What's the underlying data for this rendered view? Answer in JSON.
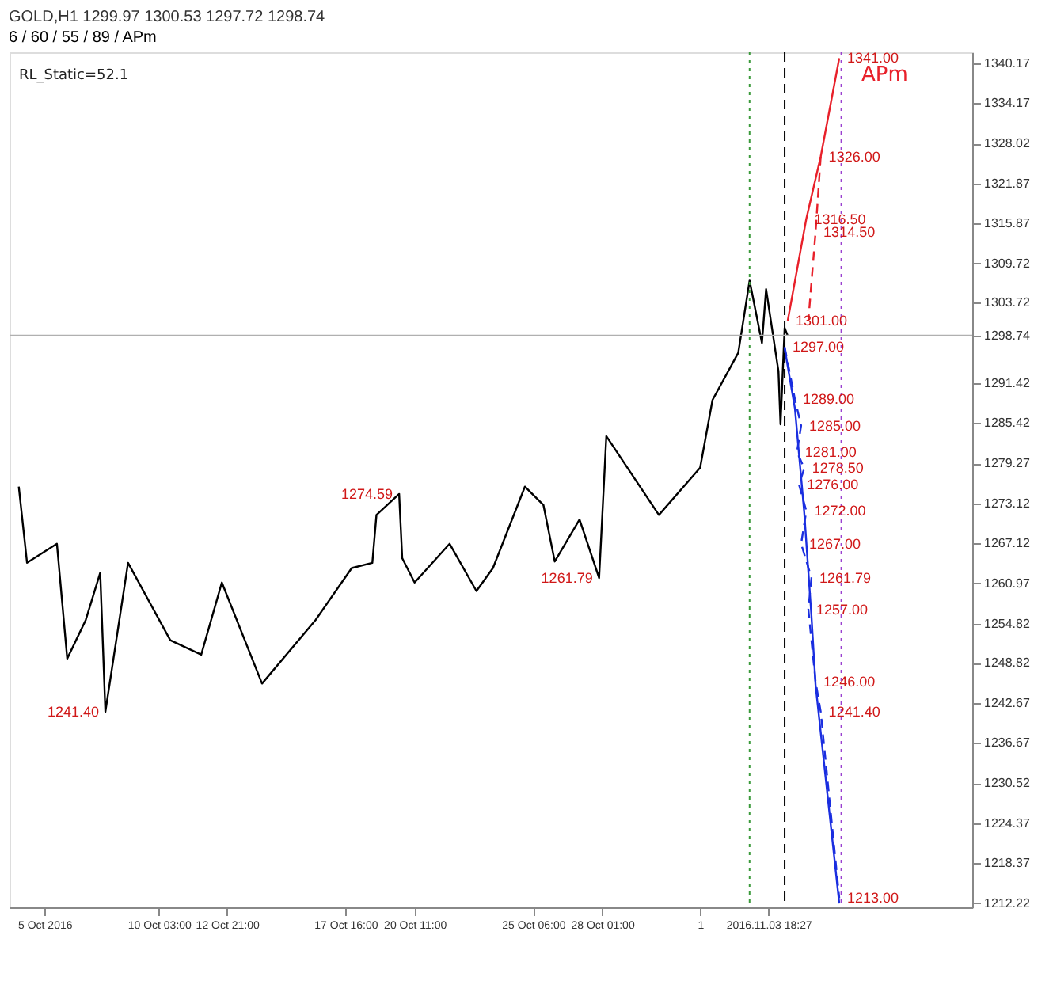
{
  "chart_data": {
    "type": "line",
    "title": "GOLD,H1  1299.97 1300.53 1297.72 1298.74",
    "subtitle": "6 / 60 / 55 / 89 / APm",
    "xlim": [
      "2016-10-04T02:00",
      "2016-11-12T00:00"
    ],
    "ylim": [
      1211.6,
      1341.9
    ],
    "xticks": [
      {
        "value": "2016-10-05T12:00",
        "label": "5 Oct 2016"
      },
      {
        "value": "2016-10-10T03:00",
        "label": "10 Oct 03:00"
      },
      {
        "value": "2016-10-12T21:00",
        "label": "12 Oct 21:00"
      },
      {
        "value": "2016-10-17T16:00",
        "label": "17 Oct 16:00"
      },
      {
        "value": "2016-10-20T11:00",
        "label": "20 Oct 11:00"
      },
      {
        "value": "2016-10-25T06:00",
        "label": "25 Oct 06:00"
      },
      {
        "value": "2016-10-28T01:00",
        "label": "28 Oct 01:00"
      },
      {
        "value": "2016-11-01T00:00",
        "label": "1"
      },
      {
        "value": "2016-11-03T18:27",
        "label": "2016.11.03 18:27"
      }
    ],
    "yticks": [
      1212.22,
      1218.37,
      1224.37,
      1230.52,
      1236.67,
      1242.67,
      1248.82,
      1254.82,
      1260.97,
      1267.12,
      1273.12,
      1279.27,
      1285.42,
      1291.42,
      1298.74,
      1303.72,
      1309.72,
      1315.87,
      1321.87,
      1328.02,
      1334.17,
      1340.17
    ],
    "grid": false,
    "series": [
      {
        "color": "#000000",
        "line_style": "solid",
        "x": [
          "2016-10-04T11:00",
          "2016-10-04T19:00",
          "2016-10-06T00:00",
          "2016-10-06T10:00",
          "2016-10-07T04:00",
          "2016-10-07T18:00",
          "2016-10-07T23:00",
          "2016-10-08T21:00",
          "2016-10-10T14:00",
          "2016-10-11T20:00",
          "2016-10-12T16:00",
          "2016-10-14T07:00",
          "2016-10-16T11:00",
          "2016-10-17T22:00",
          "2016-10-18T18:00",
          "2016-10-18T22:00",
          "2016-10-19T20:00",
          "2016-10-19T23:00",
          "2016-10-20T11:00",
          "2016-10-21T21:00",
          "2016-10-22T23:00",
          "2016-10-23T15:00",
          "2016-10-24T22:00",
          "2016-10-25T16:00",
          "2016-10-26T03:00",
          "2016-10-27T03:00",
          "2016-10-27T22:00",
          "2016-10-28T05:00",
          "2016-10-30T08:00",
          "2016-11-01T00:00",
          "2016-11-01T12:00",
          "2016-11-02T13:00",
          "2016-11-03T00:00",
          "2016-11-03T12:00",
          "2016-11-03T16:00",
          "2016-11-04T04:00",
          "2016-11-04T06:00",
          "2016-11-04T10:00",
          "2016-11-04T13:00"
        ],
        "values": [
          1275.7,
          1264.1,
          1267,
          1249.5,
          1255.4,
          1262.6,
          1241.4,
          1264.1,
          1252.3,
          1250.1,
          1261.1,
          1245.7,
          1255.4,
          1263.3,
          1264.1,
          1271.4,
          1274.59,
          1264.8,
          1261.1,
          1267,
          1259.8,
          1263.3,
          1275.7,
          1272.9,
          1264.3,
          1270.7,
          1261.79,
          1283.4,
          1271.4,
          1278.6,
          1288.9,
          1296.1,
          1307.1,
          1297.6,
          1305.8,
          1293.3,
          1285.2,
          1299.9,
          1298.7
        ]
      },
      {
        "color": "#e8202a",
        "line_style": "solid",
        "x": [
          "2016-11-04T13:00",
          "2016-11-05T07:00",
          "2016-11-05T21:00",
          "2016-11-06T15:00"
        ],
        "values": [
          1301,
          1316.5,
          1326,
          1341
        ]
      },
      {
        "color": "#e8202a",
        "line_style": "dashed",
        "x": [
          "2016-11-05T21:00",
          "2016-11-05T16:00",
          "2016-11-05T09:00"
        ],
        "values": [
          1326,
          1314.5,
          1301
        ]
      },
      {
        "color": "#1a2ee0",
        "line_style": "solid",
        "x": [
          "2016-11-04T10:00",
          "2016-11-04T20:00",
          "2016-11-05T05:00",
          "2016-11-05T12:00",
          "2016-11-05T16:00",
          "2016-11-06T15:00"
        ],
        "values": [
          1296.8,
          1287.6,
          1271.8,
          1256,
          1245.5,
          1212.2
        ]
      },
      {
        "color": "#1a2ee0",
        "line_style": "dashed",
        "x": [
          "2016-11-04T10:00",
          "2016-11-04T20:00",
          "2016-11-05T02:00",
          "2016-11-04T22:00",
          "2016-11-05T05:00",
          "2016-11-05T00:00",
          "2016-11-05T07:00",
          "2016-11-05T02:00",
          "2016-11-05T12:00",
          "2016-11-05T09:00",
          "2016-11-05T16:00",
          "2016-11-05T21:00",
          "2016-11-06T15:00"
        ],
        "values": [
          1297,
          1289,
          1285,
          1281,
          1278.5,
          1276,
          1272,
          1267,
          1261.8,
          1257,
          1246,
          1241.4,
          1213
        ]
      }
    ],
    "ref_lines": [
      {
        "axis": "y",
        "value": 1298.74,
        "color": "#b0b0b0",
        "line_style": "solid"
      },
      {
        "axis": "x",
        "value": "2016-11-04T10:00",
        "color": "#000000",
        "line_style": "dashed"
      },
      {
        "axis": "x",
        "value": "2016-11-03T00:00",
        "color": "#3a9a3a",
        "line_style": "dotted"
      },
      {
        "axis": "x",
        "value": "2016-11-06T17:00",
        "color": "#9a40d0",
        "line_style": "dotted"
      }
    ],
    "annotations": [
      "RL_Static=52.1",
      "APm",
      {
        "text": "1341.00",
        "x": "2016-11-06T15:00",
        "y": 1341
      },
      {
        "text": "1326.00",
        "x": "2016-11-05T21:00",
        "y": 1326
      },
      {
        "text": "1316.50",
        "x": "2016-11-05T07:00",
        "y": 1316.5
      },
      {
        "text": "1314.50",
        "x": "2016-11-05T16:00",
        "y": 1314.5
      },
      {
        "text": "1301.00",
        "x": "2016-11-04T13:00",
        "y": 1301
      },
      {
        "text": "1297.00",
        "x": "2016-11-04T10:00",
        "y": 1297
      },
      {
        "text": "1289.00",
        "x": "2016-11-04T20:00",
        "y": 1289
      },
      {
        "text": "1285.00",
        "x": "2016-11-05T02:00",
        "y": 1285
      },
      {
        "text": "1281.00",
        "x": "2016-11-04T22:00",
        "y": 1281
      },
      {
        "text": "1278.50",
        "x": "2016-11-05T05:00",
        "y": 1278.5
      },
      {
        "text": "1276.00",
        "x": "2016-11-05T00:00",
        "y": 1276
      },
      {
        "text": "1272.00",
        "x": "2016-11-05T07:00",
        "y": 1272
      },
      {
        "text": "1267.00",
        "x": "2016-11-05T02:00",
        "y": 1267
      },
      {
        "text": "1261.79",
        "x": "2016-11-05T12:00",
        "y": 1261.8
      },
      {
        "text": "1257.00",
        "x": "2016-11-05T09:00",
        "y": 1257
      },
      {
        "text": "1246.00",
        "x": "2016-11-05T16:00",
        "y": 1246
      },
      {
        "text": "1241.40",
        "x": "2016-11-05T21:00",
        "y": 1241.4
      },
      {
        "text": "1213.00",
        "x": "2016-11-06T15:00",
        "y": 1213
      },
      {
        "text": "1274.59",
        "x": "2016-10-19T20:00",
        "y": 1274.59
      },
      {
        "text": "1261.79",
        "x": "2016-10-27T22:00",
        "y": 1261.79
      },
      {
        "text": "1241.40",
        "x": "2016-10-07T23:00",
        "y": 1241.4
      }
    ]
  }
}
